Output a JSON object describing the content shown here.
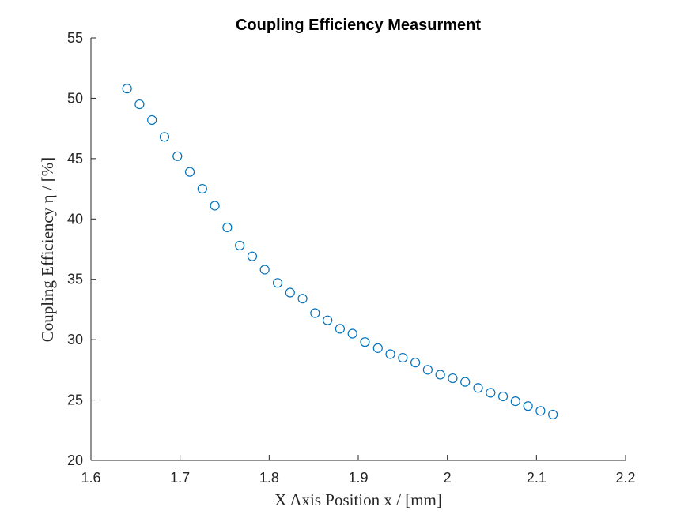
{
  "chart_data": {
    "type": "scatter",
    "title": "Coupling Efficiency Measurment",
    "xlabel": "X Axis Position x / [mm]",
    "ylabel": "Coupling Efficiency η / [%]",
    "xlim": [
      1.6,
      2.2
    ],
    "ylim": [
      20,
      55
    ],
    "xticks": [
      1.6,
      1.7,
      1.8,
      1.9,
      2.0,
      2.1,
      2.2
    ],
    "xtick_labels": [
      "1.6",
      "1.7",
      "1.8",
      "1.9",
      "2",
      "2.1",
      "2.2"
    ],
    "yticks": [
      20,
      25,
      30,
      35,
      40,
      45,
      50,
      55
    ],
    "ytick_labels": [
      "20",
      "25",
      "30",
      "35",
      "40",
      "45",
      "50",
      "55"
    ],
    "grid": false,
    "marker": "open-circle",
    "color": "#0072BD",
    "x": [
      1.6405,
      1.6545,
      1.6685,
      1.6825,
      1.697,
      1.711,
      1.725,
      1.739,
      1.753,
      1.767,
      1.781,
      1.795,
      1.8095,
      1.8235,
      1.8375,
      1.8515,
      1.8655,
      1.8795,
      1.8935,
      1.9075,
      1.922,
      1.936,
      1.95,
      1.964,
      1.978,
      1.992,
      2.006,
      2.02,
      2.0345,
      2.0485,
      2.0625,
      2.0765,
      2.0905,
      2.1045,
      2.1185
    ],
    "y": [
      50.8,
      49.5,
      48.2,
      46.8,
      45.2,
      43.9,
      42.5,
      41.1,
      39.3,
      37.8,
      36.9,
      35.8,
      34.7,
      33.9,
      33.4,
      32.2,
      31.6,
      30.9,
      30.5,
      29.8,
      29.3,
      28.8,
      28.5,
      28.1,
      27.5,
      27.1,
      26.8,
      26.5,
      26.0,
      25.6,
      25.3,
      24.9,
      24.5,
      24.1,
      23.8
    ]
  }
}
